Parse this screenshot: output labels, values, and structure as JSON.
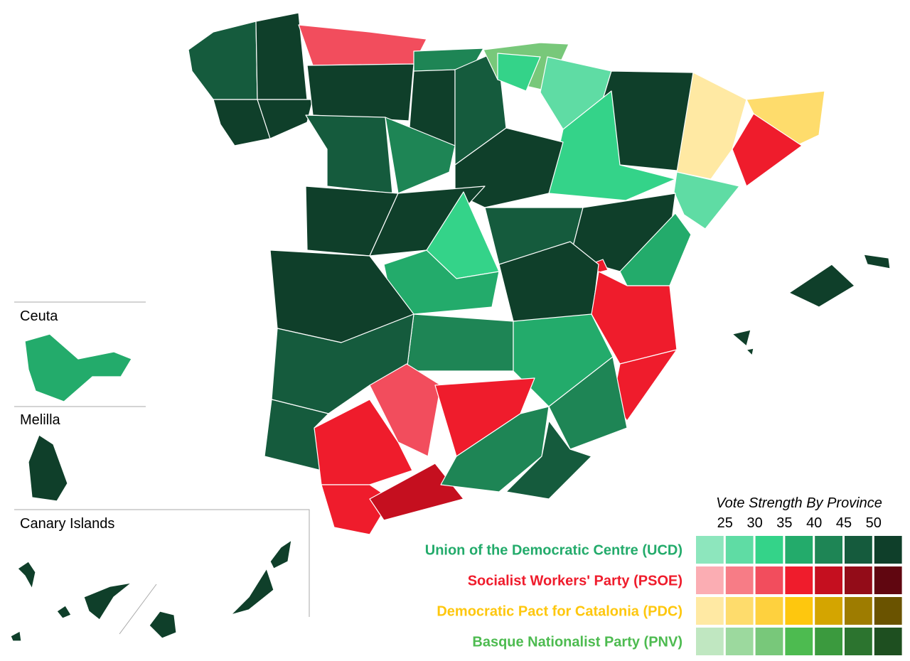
{
  "insets": [
    {
      "label": "Ceuta"
    },
    {
      "label": "Melilla"
    },
    {
      "label": "Canary Islands"
    }
  ],
  "legend": {
    "title": "Vote Strength By Province",
    "scale": [
      25,
      30,
      35,
      40,
      45,
      50
    ],
    "parties": [
      {
        "name": "Union of the Democratic Centre (UCD)",
        "color": "#23ab6b",
        "swatches": [
          "#8de6bd",
          "#5fdca4",
          "#34d389",
          "#23ab6b",
          "#1e8555",
          "#155b3d",
          "#0f3f2a"
        ]
      },
      {
        "name": "Socialist Workers' Party (PSOE)",
        "color": "#ef1c2c",
        "swatches": [
          "#fbadb3",
          "#f77c86",
          "#f24d5d",
          "#ef1c2c",
          "#c50f1f",
          "#930c18",
          "#600610"
        ]
      },
      {
        "name": "Democratic Pact for Catalonia (PDC)",
        "color": "#fec70e",
        "swatches": [
          "#ffe9a3",
          "#fedc6c",
          "#fed13e",
          "#fec70e",
          "#d4a500",
          "#9e7c00",
          "#6a5300"
        ]
      },
      {
        "name": "Basque Nationalist Party (PNV)",
        "color": "#4dbb50",
        "swatches": [
          "#c0e7c1",
          "#9cd99e",
          "#78c87a",
          "#4dbb50",
          "#3b9a3e",
          "#2c742f",
          "#1e4f20"
        ]
      }
    ]
  }
}
